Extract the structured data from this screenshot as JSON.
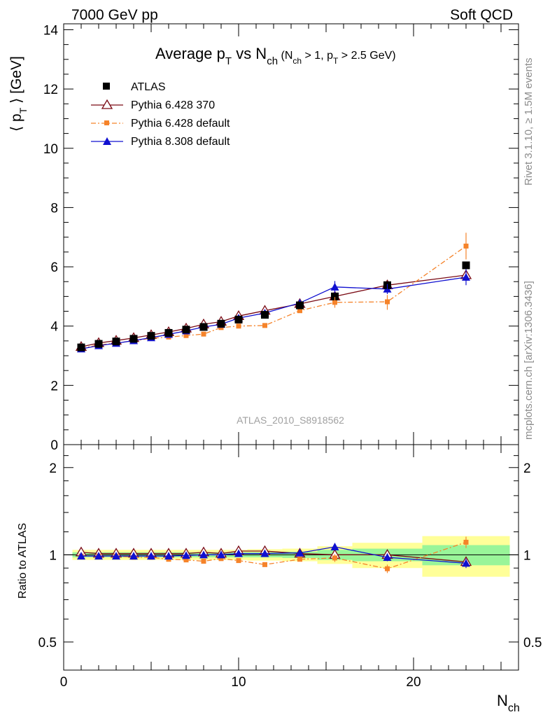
{
  "header": {
    "left": "7000 GeV pp",
    "right": "Soft QCD"
  },
  "side_text": {
    "top": "Rivet 3.1.10, ≥ 1.5M events",
    "bottom": "mcplots.cern.ch [arXiv:1306.3436]"
  },
  "chart_data": {
    "type": "line",
    "title": {
      "base": "Average p",
      "sub1": "T",
      "mid": " vs N",
      "sub2": "ch",
      "cut_a": " (N",
      "cut_b": "ch",
      "cut_c": " > 1, p",
      "cut_d": "T",
      "cut_e": " > 2.5 GeV)"
    },
    "watermark": "ATLAS_2010_S8918562",
    "xlabel": {
      "base": "N",
      "sub": "ch"
    },
    "ylabel": {
      "pre": "⟨ p",
      "sub": "T",
      "post": " ⟩  [GeV]"
    },
    "ratio_ylabel": "Ratio to ATLAS",
    "xlim": [
      0,
      26
    ],
    "ylim": [
      0,
      14.2
    ],
    "ratio_ylim": [
      0.4,
      2.4
    ],
    "x_ticks": [
      "0",
      "10",
      "20"
    ],
    "y_ticks": [
      "0",
      "2",
      "4",
      "6",
      "8",
      "10",
      "12",
      "14"
    ],
    "ratio_ticks": [
      "0.5",
      "1",
      "2"
    ],
    "colors": {
      "atlas": "#000000",
      "p370": "#7a0a14",
      "pdef": "#f5832a",
      "p8": "#1010d0",
      "band_inner": "#99f599",
      "band_outer": "#ffff99"
    },
    "x": [
      1,
      2,
      3,
      4,
      5,
      6,
      7,
      8,
      9,
      10,
      11.5,
      13.5,
      15.5,
      18.5,
      23
    ],
    "band": [
      {
        "x0": 0.5,
        "x1": 1.5,
        "inner": 0.02,
        "outer": 0.04
      },
      {
        "x0": 1.5,
        "x1": 2.5,
        "inner": 0.02,
        "outer": 0.04
      },
      {
        "x0": 2.5,
        "x1": 3.5,
        "inner": 0.02,
        "outer": 0.04
      },
      {
        "x0": 3.5,
        "x1": 4.5,
        "inner": 0.02,
        "outer": 0.04
      },
      {
        "x0": 4.5,
        "x1": 5.5,
        "inner": 0.02,
        "outer": 0.04
      },
      {
        "x0": 5.5,
        "x1": 6.5,
        "inner": 0.02,
        "outer": 0.04
      },
      {
        "x0": 6.5,
        "x1": 7.5,
        "inner": 0.02,
        "outer": 0.04
      },
      {
        "x0": 7.5,
        "x1": 8.5,
        "inner": 0.02,
        "outer": 0.04
      },
      {
        "x0": 8.5,
        "x1": 9.5,
        "inner": 0.02,
        "outer": 0.04
      },
      {
        "x0": 9.5,
        "x1": 10.5,
        "inner": 0.02,
        "outer": 0.04
      },
      {
        "x0": 10.5,
        "x1": 12.5,
        "inner": 0.02,
        "outer": 0.045
      },
      {
        "x0": 12.5,
        "x1": 14.5,
        "inner": 0.025,
        "outer": 0.05
      },
      {
        "x0": 14.5,
        "x1": 16.5,
        "inner": 0.04,
        "outer": 0.07
      },
      {
        "x0": 16.5,
        "x1": 20.5,
        "inner": 0.05,
        "outer": 0.1
      },
      {
        "x0": 20.5,
        "x1": 25.5,
        "inner": 0.08,
        "outer": 0.16
      }
    ],
    "series": [
      {
        "name": "ATLAS",
        "key": "atlas",
        "marker": "square",
        "style": "none",
        "y": [
          3.28,
          3.4,
          3.48,
          3.57,
          3.67,
          3.77,
          3.88,
          3.97,
          4.08,
          4.22,
          4.38,
          4.7,
          5.0,
          5.38,
          6.05
        ],
        "ratio": [
          1,
          1,
          1,
          1,
          1,
          1,
          1,
          1,
          1,
          1,
          1,
          1,
          1,
          1,
          1
        ],
        "ratio_err": [
          0,
          0,
          0,
          0,
          0,
          0,
          0,
          0,
          0,
          0,
          0,
          0,
          0,
          0,
          0
        ]
      },
      {
        "name": "Pythia 6.428 370",
        "key": "p370",
        "marker": "triangle-open",
        "style": "solid",
        "y": [
          3.3,
          3.43,
          3.51,
          3.6,
          3.7,
          3.8,
          3.92,
          4.06,
          4.15,
          4.34,
          4.52,
          4.75,
          5.0,
          5.38,
          5.72
        ],
        "ratio": [
          1.02,
          1.01,
          1.01,
          1.01,
          1.01,
          1.01,
          1.01,
          1.02,
          1.01,
          1.03,
          1.03,
          1.01,
          1.0,
          1.0,
          0.945
        ],
        "ratio_err": [
          0,
          0,
          0,
          0,
          0,
          0,
          0,
          0,
          0,
          0,
          0,
          0,
          0,
          0,
          0
        ]
      },
      {
        "name": "Pythia 6.428 default",
        "key": "pdef",
        "marker": "square-small",
        "style": "dashdot",
        "y": [
          3.25,
          3.36,
          3.43,
          3.5,
          3.59,
          3.63,
          3.68,
          3.73,
          3.95,
          4.0,
          4.02,
          4.52,
          4.8,
          4.82,
          6.7
        ],
        "ratio": [
          0.99,
          0.99,
          0.99,
          0.98,
          0.98,
          0.965,
          0.96,
          0.95,
          0.97,
          0.955,
          0.925,
          0.965,
          0.975,
          0.895,
          1.105
        ],
        "ratio_err": [
          0,
          0,
          0,
          0,
          0,
          0,
          0,
          0,
          0,
          0,
          0,
          0,
          0.03,
          0.03,
          0.05
        ]
      },
      {
        "name": "Pythia 8.308 default",
        "key": "p8",
        "marker": "triangle",
        "style": "solid",
        "y": [
          3.23,
          3.34,
          3.42,
          3.51,
          3.61,
          3.72,
          3.84,
          3.97,
          4.06,
          4.27,
          4.44,
          4.78,
          5.32,
          5.25,
          5.65
        ],
        "ratio": [
          0.99,
          0.99,
          0.99,
          0.99,
          0.99,
          0.99,
          0.995,
          1.0,
          1.0,
          1.01,
          1.01,
          1.015,
          1.065,
          0.98,
          0.935
        ],
        "ratio_err": [
          0,
          0,
          0,
          0,
          0,
          0,
          0,
          0,
          0,
          0,
          0,
          0,
          0.03,
          0.03,
          0.035
        ]
      }
    ]
  }
}
